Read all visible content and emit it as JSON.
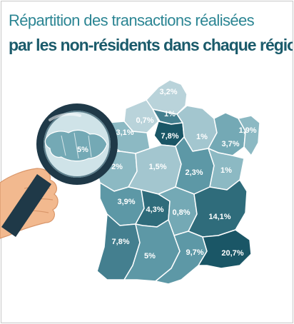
{
  "title": {
    "line1": "Répartition des transactions réalisées",
    "line2": "par les non-résidents dans chaque région"
  },
  "colors": {
    "title_light": "#2b8593",
    "title_dark": "#1b5b6b",
    "region_fills": [
      "#b9d3da",
      "#a3c6cf",
      "#8cb9c3",
      "#74a9b5",
      "#5d98a6",
      "#447f8f",
      "#2f6c7b",
      "#1a5666"
    ],
    "lens_ring": "#1f3948",
    "hand": "#f2b98f"
  },
  "icons": {
    "magnifier": "magnifying-glass-icon",
    "hand": "hand-icon"
  },
  "regions": [
    {
      "id": "hauts-de-france",
      "value": "3,2%"
    },
    {
      "id": "normandie-est",
      "value": "0,7%"
    },
    {
      "id": "normandie-ouest",
      "value": "3,1%"
    },
    {
      "id": "bretagne",
      "value": "5%"
    },
    {
      "id": "ile-de-france-nord",
      "value": "1%"
    },
    {
      "id": "ile-de-france",
      "value": "7,8%"
    },
    {
      "id": "champagne",
      "value": "1%"
    },
    {
      "id": "lorraine",
      "value": "3,7%"
    },
    {
      "id": "alsace",
      "value": "1,9%"
    },
    {
      "id": "pays-de-la-loire",
      "value": "2%"
    },
    {
      "id": "centre",
      "value": "1,5%"
    },
    {
      "id": "bourgogne",
      "value": "2,3%"
    },
    {
      "id": "franche-comte",
      "value": "1%"
    },
    {
      "id": "poitou-charentes",
      "value": "3,9%"
    },
    {
      "id": "limousin",
      "value": "4,3%"
    },
    {
      "id": "auvergne",
      "value": "0,8%"
    },
    {
      "id": "rhone-alpes",
      "value": "14,1%"
    },
    {
      "id": "aquitaine",
      "value": "7,8%"
    },
    {
      "id": "midi-pyrenees",
      "value": "5%"
    },
    {
      "id": "languedoc",
      "value": "9,7%"
    },
    {
      "id": "paca",
      "value": "20,7%"
    }
  ]
}
